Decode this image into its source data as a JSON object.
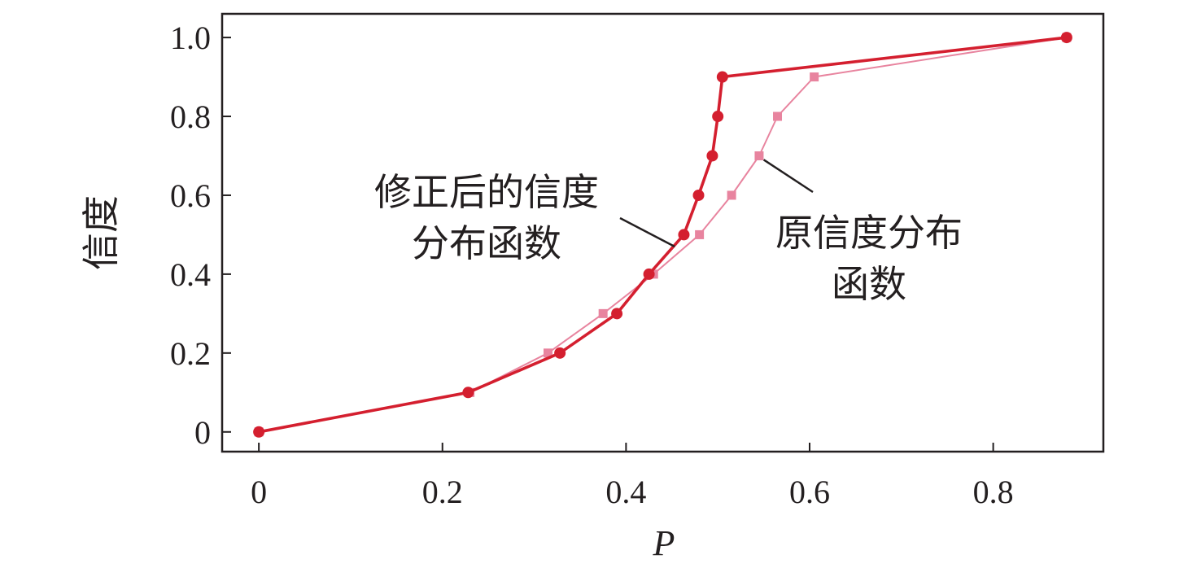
{
  "chart_data": {
    "type": "line",
    "xlabel": "P",
    "ylabel": "信度",
    "xlim": [
      -0.04,
      0.92
    ],
    "ylim": [
      -0.05,
      1.06
    ],
    "x_ticks": [
      0,
      0.2,
      0.4,
      0.6,
      0.8
    ],
    "x_tick_labels": [
      "0",
      "0.2",
      "0.4",
      "0.6",
      "0.8"
    ],
    "y_ticks": [
      0,
      0.2,
      0.4,
      0.6,
      0.8,
      1.0
    ],
    "y_tick_labels": [
      "0",
      "0.2",
      "0.4",
      "0.6",
      "0.8",
      "1.0"
    ],
    "grid": false,
    "legend": "none",
    "series": [
      {
        "name": "原信度分布函数",
        "color": "#e8849f",
        "marker": "square",
        "x": [
          0,
          0.23,
          0.315,
          0.375,
          0.43,
          0.48,
          0.515,
          0.545,
          0.565,
          0.605,
          0.88
        ],
        "y": [
          0,
          0.1,
          0.2,
          0.3,
          0.4,
          0.5,
          0.6,
          0.7,
          0.8,
          0.9,
          1.0
        ]
      },
      {
        "name": "修正后的信度分布函数",
        "color": "#d41f2f",
        "marker": "circle",
        "x": [
          0,
          0.228,
          0.328,
          0.39,
          0.425,
          0.463,
          0.479,
          0.494,
          0.5,
          0.505,
          0.88
        ],
        "y": [
          0,
          0.1,
          0.2,
          0.3,
          0.4,
          0.5,
          0.6,
          0.7,
          0.8,
          0.9,
          1.0
        ]
      }
    ],
    "annotations": [
      {
        "lines": [
          "修正后的信度",
          "分布函数"
        ],
        "series": "修正后的信度分布函数",
        "pointer_to": [
          0.453,
          0.47
        ]
      },
      {
        "lines": [
          "原信度分布",
          "函数"
        ],
        "series": "原信度分布函数",
        "pointer_to": [
          0.55,
          0.69
        ]
      }
    ]
  }
}
